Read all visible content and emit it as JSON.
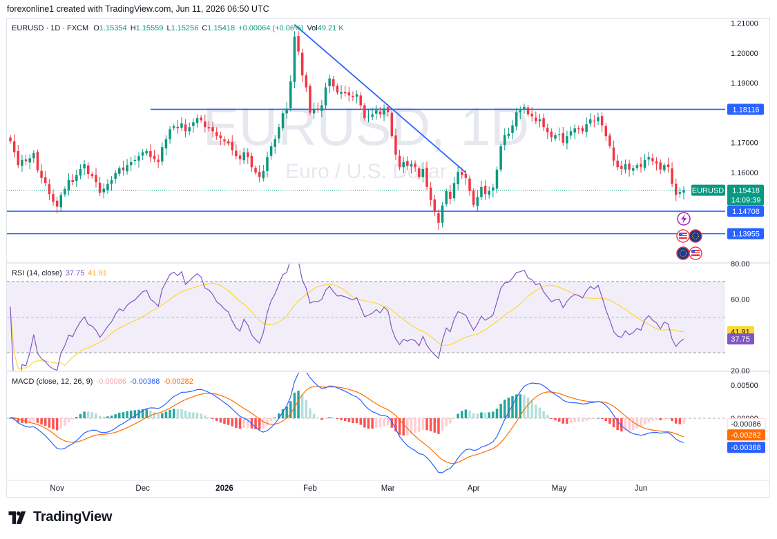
{
  "header": {
    "text": "forexonline1 created with TradingView.com, Jun 11, 2026 06:50 UTC"
  },
  "brand": {
    "name": "TradingView"
  },
  "watermark": {
    "symbol": "EURUSD, 1D",
    "description": "Euro / U.S. Dollar"
  },
  "ohlc": {
    "symbol_line": "EURUSD · 1D · FXCM",
    "o_label": "O",
    "o_value": "1.15354",
    "h_label": "H",
    "h_value": "1.15559",
    "l_label": "L",
    "l_value": "1.15256",
    "c_label": "C",
    "c_value": "1.15418",
    "change": "+0.00064 (+0.06%)",
    "vol_label": "Vol",
    "vol_value": "49.21 K"
  },
  "rsi_legend": {
    "label": "RSI (14, close)",
    "rsi": "37.75",
    "ma": "41.91"
  },
  "macd_legend": {
    "label": "MACD (close, 12, 26, 9)",
    "hist": "-0.00086",
    "macd": "-0.00368",
    "signal": "-0.00282"
  },
  "colors": {
    "up": "#089981",
    "down": "#f23645",
    "blue": "#2962ff",
    "rsi": "#7e57c2",
    "rsi_ma": "#fdd835",
    "signal": "#ff6d00",
    "macd": "#2962ff"
  },
  "chart_data": [
    {
      "type": "candlestick",
      "symbol": "EURUSD",
      "interval": "1D",
      "ylim": [
        1.13,
        1.2115
      ],
      "yticks": [
        "1.21000",
        "1.20000",
        "1.19000",
        "1.17000",
        "1.16000"
      ],
      "x_ticks": [
        {
          "label": "Nov",
          "i": 12
        },
        {
          "label": "Dec",
          "i": 34
        },
        {
          "label": "2026",
          "i": 55
        },
        {
          "label": "Feb",
          "i": 77
        },
        {
          "label": "Mar",
          "i": 97
        },
        {
          "label": "Apr",
          "i": 119
        },
        {
          "label": "May",
          "i": 141
        },
        {
          "label": "Jun",
          "i": 162
        }
      ],
      "horizontal_levels": [
        {
          "value": 1.18116,
          "label": "1.18116"
        },
        {
          "value": 1.14708,
          "label": "1.14708"
        },
        {
          "value": 1.13955,
          "label": "1.13955"
        }
      ],
      "trendline": {
        "from": {
          "i": 73,
          "price": 1.2095
        },
        "to": {
          "i": 117,
          "price": 1.16
        }
      },
      "current_price": {
        "label": "EURUSD",
        "value": "1.15418",
        "countdown": "14:09:39"
      },
      "closes": [
        1.1705,
        1.1668,
        1.1625,
        1.1642,
        1.1638,
        1.1648,
        1.1665,
        1.1608,
        1.1582,
        1.1565,
        1.1528,
        1.1502,
        1.1486,
        1.1525,
        1.1545,
        1.1575,
        1.1568,
        1.1592,
        1.1612,
        1.1628,
        1.1595,
        1.1588,
        1.1568,
        1.1532,
        1.1546,
        1.1562,
        1.1575,
        1.1598,
        1.1615,
        1.1608,
        1.1625,
        1.1635,
        1.1642,
        1.1655,
        1.1668,
        1.1672,
        1.1652,
        1.1645,
        1.1635,
        1.1685,
        1.1712,
        1.1745,
        1.1755,
        1.1748,
        1.1765,
        1.1738,
        1.1752,
        1.1768,
        1.1782,
        1.1775,
        1.1752,
        1.1748,
        1.1738,
        1.1722,
        1.1715,
        1.1705,
        1.1698,
        1.1675,
        1.1655,
        1.1645,
        1.1668,
        1.1652,
        1.1618,
        1.16,
        1.1585,
        1.1605,
        1.1652,
        1.1688,
        1.1712,
        1.1752,
        1.1798,
        1.1812,
        1.1905,
        1.2055,
        1.2005,
        1.1925,
        1.1885,
        1.18,
        1.1812,
        1.181,
        1.1825,
        1.1885,
        1.1915,
        1.1888,
        1.1868,
        1.187,
        1.1865,
        1.1858,
        1.1852,
        1.1862,
        1.1825,
        1.1782,
        1.1788,
        1.1795,
        1.1808,
        1.1795,
        1.1815,
        1.1802,
        1.1722,
        1.166,
        1.1618,
        1.1635,
        1.1622,
        1.1628,
        1.1618,
        1.1585,
        1.1612,
        1.1552,
        1.1508,
        1.1468,
        1.1432,
        1.149,
        1.1538,
        1.1512,
        1.1565,
        1.1602,
        1.1592,
        1.1582,
        1.1538,
        1.1492,
        1.1518,
        1.1552,
        1.1528,
        1.1538,
        1.155,
        1.161,
        1.1688,
        1.1725,
        1.173,
        1.1758,
        1.1802,
        1.1808,
        1.182,
        1.1795,
        1.1788,
        1.1772,
        1.1778,
        1.1752,
        1.1735,
        1.1718,
        1.1725,
        1.1728,
        1.17,
        1.1722,
        1.1738,
        1.1748,
        1.1745,
        1.1738,
        1.1762,
        1.1778,
        1.1772,
        1.1785,
        1.1758,
        1.1722,
        1.1688,
        1.164,
        1.1618,
        1.1612,
        1.1628,
        1.161,
        1.1615,
        1.1625,
        1.1618,
        1.1642,
        1.1652,
        1.1638,
        1.163,
        1.161,
        1.1625,
        1.1618,
        1.1562,
        1.1525,
        1.1535,
        1.1541
      ]
    },
    {
      "type": "line",
      "name": "RSI (14, close)",
      "ylim": [
        20,
        80
      ],
      "yticks": [
        "80.00",
        "60.00",
        "20.00"
      ],
      "bands": {
        "upper": 70,
        "middle": 50,
        "lower": 30
      },
      "last": {
        "rsi": 37.75,
        "ma": 41.91
      }
    },
    {
      "type": "bar",
      "name": "MACD (close, 12, 26, 9)",
      "ylim": [
        -0.0093,
        0.0069
      ],
      "yticks": [
        "0.00500",
        "0.00000"
      ],
      "last": {
        "histogram": -0.00086,
        "macd": -0.00368,
        "signal": -0.00282
      }
    }
  ]
}
